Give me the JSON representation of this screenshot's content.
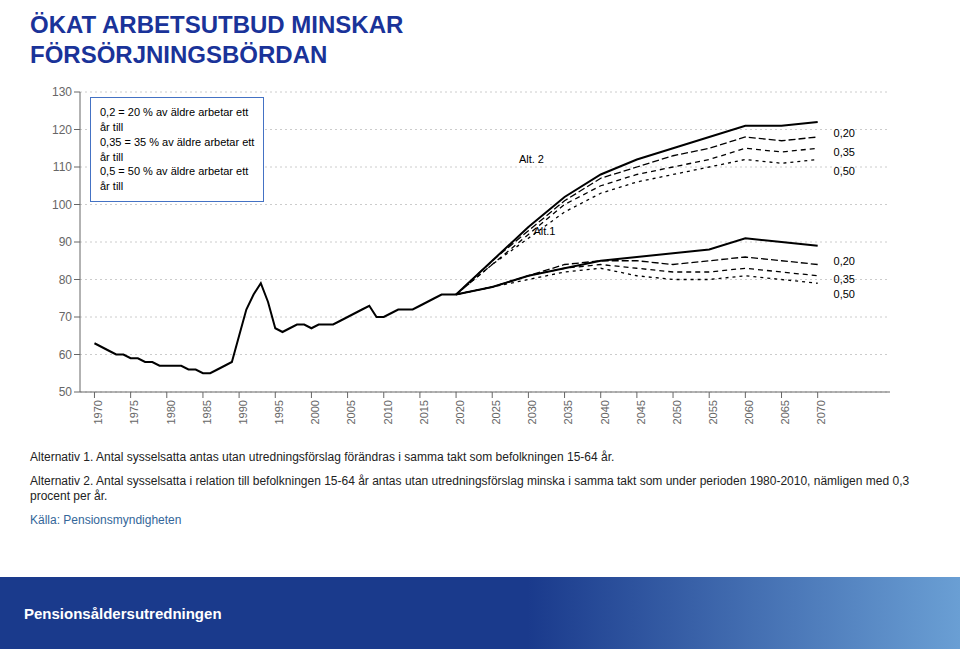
{
  "chart_data": {
    "type": "line",
    "title": "ÖKAT ARBETSUTBUD MINSKAR\nFÖRSÖRJNINGSBÖRDAN",
    "x": [
      1970,
      1971,
      1972,
      1973,
      1974,
      1975,
      1976,
      1977,
      1978,
      1979,
      1980,
      1981,
      1982,
      1983,
      1984,
      1985,
      1986,
      1987,
      1988,
      1989,
      1990,
      1991,
      1992,
      1993,
      1994,
      1995,
      1996,
      1997,
      1998,
      1999,
      2000,
      2001,
      2002,
      2003,
      2004,
      2005,
      2006,
      2007,
      2008,
      2009,
      2010,
      2011,
      2012,
      2013,
      2014,
      2015,
      2016,
      2017,
      2018,
      2019,
      2020,
      2025,
      2030,
      2035,
      2040,
      2045,
      2050,
      2055,
      2060,
      2065,
      2070
    ],
    "series": [
      {
        "color": "#000000",
        "line_style": "solid",
        "values": [
          63,
          62,
          61,
          60,
          60,
          59,
          59,
          58,
          58,
          57,
          57,
          57,
          57,
          56,
          56,
          55,
          55,
          56,
          57,
          58,
          65,
          72,
          76,
          79,
          74,
          67,
          66,
          67,
          68,
          68,
          67,
          68,
          68,
          68,
          69,
          70,
          71,
          72,
          73,
          70,
          70,
          71,
          72,
          72,
          72,
          73,
          74,
          75,
          76,
          76,
          76,
          null,
          null,
          null,
          null,
          null,
          null,
          null,
          null,
          null,
          null
        ]
      },
      {
        "color": "#000000",
        "line_style": "solid",
        "values": [
          null,
          null,
          null,
          null,
          null,
          null,
          null,
          null,
          null,
          null,
          null,
          null,
          null,
          null,
          null,
          null,
          null,
          null,
          null,
          null,
          null,
          null,
          null,
          null,
          null,
          null,
          null,
          null,
          null,
          null,
          null,
          null,
          null,
          null,
          null,
          null,
          null,
          null,
          null,
          null,
          null,
          null,
          null,
          null,
          null,
          null,
          null,
          null,
          null,
          null,
          76,
          78,
          81,
          83,
          85,
          86,
          87,
          88,
          91,
          90,
          89
        ]
      },
      {
        "color": "#000000",
        "line_style": "longdash",
        "values": [
          null,
          null,
          null,
          null,
          null,
          null,
          null,
          null,
          null,
          null,
          null,
          null,
          null,
          null,
          null,
          null,
          null,
          null,
          null,
          null,
          null,
          null,
          null,
          null,
          null,
          null,
          null,
          null,
          null,
          null,
          null,
          null,
          null,
          null,
          null,
          null,
          null,
          null,
          null,
          null,
          null,
          null,
          null,
          null,
          null,
          null,
          null,
          null,
          null,
          null,
          76,
          78,
          81,
          84,
          85,
          85,
          84,
          85,
          86,
          85,
          84
        ]
      },
      {
        "color": "#000000",
        "line_style": "dashed",
        "values": [
          null,
          null,
          null,
          null,
          null,
          null,
          null,
          null,
          null,
          null,
          null,
          null,
          null,
          null,
          null,
          null,
          null,
          null,
          null,
          null,
          null,
          null,
          null,
          null,
          null,
          null,
          null,
          null,
          null,
          null,
          null,
          null,
          null,
          null,
          null,
          null,
          null,
          null,
          null,
          null,
          null,
          null,
          null,
          null,
          null,
          null,
          null,
          null,
          null,
          null,
          76,
          78,
          81,
          83,
          84,
          83,
          82,
          82,
          83,
          82,
          81
        ]
      },
      {
        "color": "#000000",
        "line_style": "shortdash",
        "values": [
          null,
          null,
          null,
          null,
          null,
          null,
          null,
          null,
          null,
          null,
          null,
          null,
          null,
          null,
          null,
          null,
          null,
          null,
          null,
          null,
          null,
          null,
          null,
          null,
          null,
          null,
          null,
          null,
          null,
          null,
          null,
          null,
          null,
          null,
          null,
          null,
          null,
          null,
          null,
          null,
          null,
          null,
          null,
          null,
          null,
          null,
          null,
          null,
          null,
          null,
          76,
          78,
          80,
          82,
          83,
          81,
          80,
          80,
          81,
          80,
          79
        ]
      },
      {
        "color": "#000000",
        "line_style": "solid",
        "values": [
          null,
          null,
          null,
          null,
          null,
          null,
          null,
          null,
          null,
          null,
          null,
          null,
          null,
          null,
          null,
          null,
          null,
          null,
          null,
          null,
          null,
          null,
          null,
          null,
          null,
          null,
          null,
          null,
          null,
          null,
          null,
          null,
          null,
          null,
          null,
          null,
          null,
          null,
          null,
          null,
          null,
          null,
          null,
          null,
          null,
          null,
          null,
          null,
          null,
          null,
          76,
          85,
          94,
          102,
          108,
          112,
          115,
          118,
          121,
          121,
          122
        ]
      },
      {
        "color": "#000000",
        "line_style": "longdash",
        "values": [
          null,
          null,
          null,
          null,
          null,
          null,
          null,
          null,
          null,
          null,
          null,
          null,
          null,
          null,
          null,
          null,
          null,
          null,
          null,
          null,
          null,
          null,
          null,
          null,
          null,
          null,
          null,
          null,
          null,
          null,
          null,
          null,
          null,
          null,
          null,
          null,
          null,
          null,
          null,
          null,
          null,
          null,
          null,
          null,
          null,
          null,
          null,
          null,
          null,
          null,
          76,
          85,
          93,
          101,
          107,
          110,
          113,
          115,
          118,
          117,
          118
        ]
      },
      {
        "color": "#000000",
        "line_style": "dashed",
        "values": [
          null,
          null,
          null,
          null,
          null,
          null,
          null,
          null,
          null,
          null,
          null,
          null,
          null,
          null,
          null,
          null,
          null,
          null,
          null,
          null,
          null,
          null,
          null,
          null,
          null,
          null,
          null,
          null,
          null,
          null,
          null,
          null,
          null,
          null,
          null,
          null,
          null,
          null,
          null,
          null,
          null,
          null,
          null,
          null,
          null,
          null,
          null,
          null,
          null,
          null,
          76,
          84,
          92,
          100,
          105,
          108,
          110,
          112,
          115,
          114,
          115
        ]
      },
      {
        "color": "#000000",
        "line_style": "shortdash",
        "values": [
          null,
          null,
          null,
          null,
          null,
          null,
          null,
          null,
          null,
          null,
          null,
          null,
          null,
          null,
          null,
          null,
          null,
          null,
          null,
          null,
          null,
          null,
          null,
          null,
          null,
          null,
          null,
          null,
          null,
          null,
          null,
          null,
          null,
          null,
          null,
          null,
          null,
          null,
          null,
          null,
          null,
          null,
          null,
          null,
          null,
          null,
          null,
          null,
          null,
          null,
          76,
          84,
          91,
          98,
          103,
          106,
          108,
          110,
          112,
          111,
          112
        ]
      }
    ],
    "xlim": [
      1968,
      2080
    ],
    "xticks": [
      1970,
      1975,
      1980,
      1985,
      1990,
      1995,
      2000,
      2005,
      2010,
      2015,
      2020,
      2025,
      2030,
      2035,
      2040,
      2045,
      2050,
      2055,
      2060,
      2065,
      2070
    ],
    "ylim": [
      50,
      130
    ],
    "yticks": [
      50,
      60,
      70,
      80,
      90,
      100,
      110,
      120,
      130
    ],
    "grid": true,
    "annotations": [
      {
        "text": "0,20",
        "x": 2071.5,
        "y": 119
      },
      {
        "text": "0,35",
        "x": 2071.5,
        "y": 114
      },
      {
        "text": "0,50",
        "x": 2071.5,
        "y": 109
      },
      {
        "text": "0,20",
        "x": 2071.5,
        "y": 85
      },
      {
        "text": "0,35",
        "x": 2071.5,
        "y": 80
      },
      {
        "text": "0,50",
        "x": 2071.5,
        "y": 76
      },
      {
        "text": "Alt. 2",
        "x": 2028,
        "y": 112
      },
      {
        "text": "Alt.1",
        "x": 2030,
        "y": 93
      }
    ],
    "legend_text": "0,2 = 20 % av äldre arbetar ett\når till\n0,35 = 35 % av äldre arbetar ett\når till\n0,5 = 50 % av äldre arbetar ett\når till",
    "footnotes": [
      "Alternativ 1. Antal sysselsatta antas utan utredningsförslag förändras i samma takt som befolkningen 15-64 år.",
      "Alternativ 2. Antal sysselsatta i relation till befolkningen 15-64 år antas utan utredningsförslag minska i samma takt som under perioden 1980-2010, nämligen med 0,3 procent per år."
    ],
    "source": "Källa: Pensionsmyndigheten",
    "bottom_label": "Pensionsåldersutredningen"
  }
}
